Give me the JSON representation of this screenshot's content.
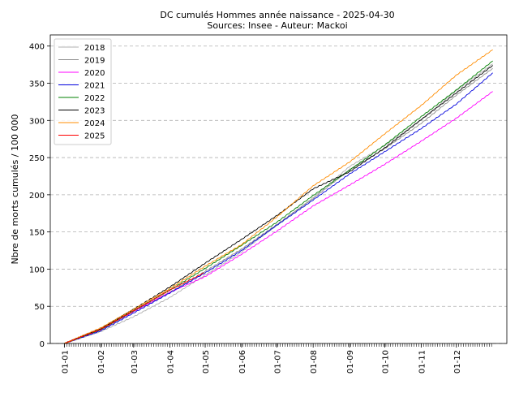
{
  "chart_data": {
    "type": "line",
    "title": "DC cumulés Hommes année naissance  - 2025-04-30",
    "subtitle": "Sources: Insee - Auteur: Mackoi",
    "xlabel": "",
    "ylabel": "Nbre de morts cumulés / 100 000",
    "x_ticks": [
      "01-01",
      "01-02",
      "01-03",
      "01-04",
      "01-05",
      "01-06",
      "01-07",
      "01-08",
      "01-09",
      "01-10",
      "01-11",
      "01-12"
    ],
    "x_tick_days": [
      0,
      31,
      59,
      90,
      120,
      151,
      181,
      212,
      243,
      273,
      304,
      334
    ],
    "xlim": [
      -12,
      377
    ],
    "ylim": [
      0,
      415
    ],
    "y_ticks": [
      0,
      50,
      100,
      150,
      200,
      250,
      300,
      350,
      400
    ],
    "grid": "horizontal dashed",
    "legend_position": "top-left",
    "series": [
      {
        "name": "2018",
        "color": "#b0b0b0",
        "x": [
          0,
          31,
          59,
          90,
          120,
          151,
          181,
          212,
          243,
          273,
          304,
          334,
          365
        ],
        "y": [
          0,
          16,
          36,
          62,
          92,
          123,
          159,
          196,
          238,
          266,
          301,
          340,
          376
        ]
      },
      {
        "name": "2019",
        "color": "#8c8c8c",
        "x": [
          0,
          31,
          59,
          90,
          120,
          151,
          181,
          212,
          243,
          273,
          304,
          334,
          365
        ],
        "y": [
          0,
          18,
          43,
          69,
          97,
          127,
          160,
          195,
          234,
          262,
          296,
          334,
          370
        ]
      },
      {
        "name": "2020",
        "color": "#ff00ff",
        "x": [
          0,
          31,
          59,
          90,
          120,
          151,
          181,
          212,
          243,
          273,
          304,
          334,
          365
        ],
        "y": [
          0,
          19,
          43,
          69,
          90,
          120,
          151,
          185,
          213,
          241,
          272,
          303,
          339
        ]
      },
      {
        "name": "2021",
        "color": "#0000dd",
        "x": [
          0,
          31,
          59,
          90,
          120,
          151,
          181,
          212,
          243,
          273,
          304,
          334,
          365
        ],
        "y": [
          0,
          17,
          41,
          68,
          95,
          125,
          159,
          193,
          228,
          258,
          289,
          322,
          364
        ]
      },
      {
        "name": "2022",
        "color": "#008000",
        "x": [
          0,
          31,
          59,
          90,
          120,
          151,
          181,
          212,
          243,
          273,
          304,
          334,
          365
        ],
        "y": [
          0,
          19,
          44,
          72,
          101,
          132,
          163,
          199,
          233,
          267,
          305,
          341,
          380
        ]
      },
      {
        "name": "2023",
        "color": "#000000",
        "x": [
          0,
          31,
          59,
          90,
          120,
          151,
          181,
          212,
          243,
          273,
          304,
          334,
          365
        ],
        "y": [
          0,
          20,
          46,
          76,
          108,
          140,
          172,
          208,
          231,
          263,
          301,
          337,
          374
        ]
      },
      {
        "name": "2024",
        "color": "#ff8c00",
        "x": [
          0,
          31,
          59,
          90,
          120,
          151,
          181,
          212,
          243,
          273,
          304,
          334,
          365
        ],
        "y": [
          0,
          21,
          46,
          74,
          104,
          133,
          170,
          212,
          244,
          282,
          320,
          361,
          395
        ]
      },
      {
        "name": "2025",
        "color": "#ff0000",
        "x": [
          0,
          31,
          59,
          90,
          119
        ],
        "y": [
          0,
          19,
          44,
          72,
          95
        ]
      }
    ]
  }
}
